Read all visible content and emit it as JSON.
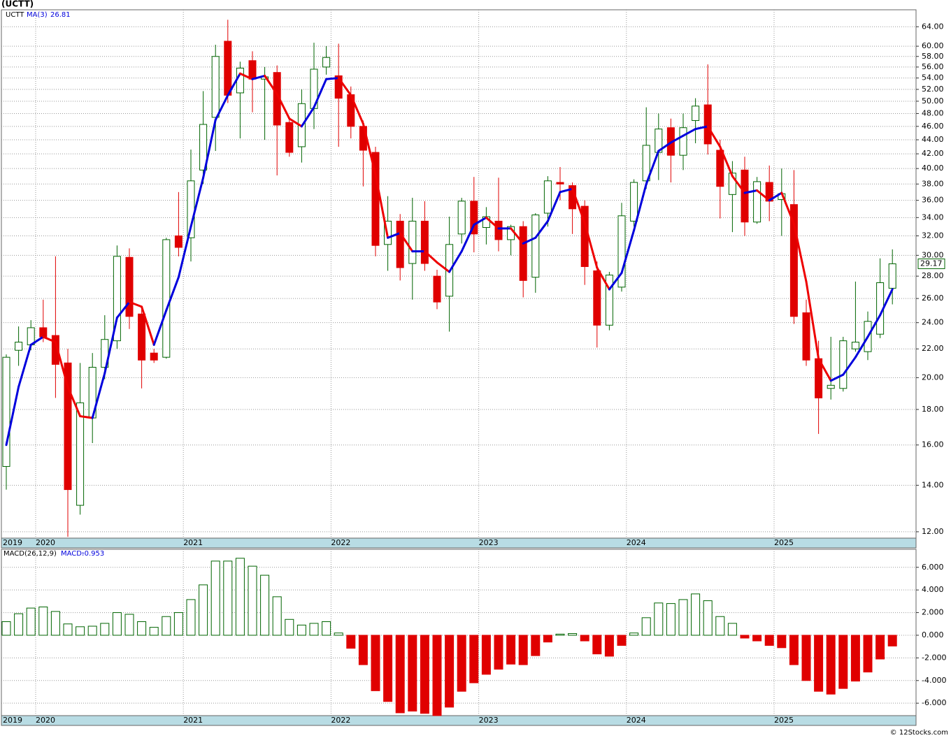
{
  "chart_data": [
    {
      "type": "candlestick",
      "title": "(UCTT)",
      "ticker": "UCTT",
      "log": true,
      "grid": true,
      "up_color": "#006400",
      "down_color": "#e00000",
      "categories": [
        "2019",
        null,
        null,
        "2020",
        null,
        null,
        null,
        null,
        null,
        null,
        null,
        null,
        null,
        null,
        null,
        "2021",
        null,
        null,
        null,
        null,
        null,
        null,
        null,
        null,
        null,
        null,
        null,
        "2022",
        null,
        null,
        null,
        null,
        null,
        null,
        null,
        null,
        null,
        null,
        null,
        "2023",
        null,
        null,
        null,
        null,
        null,
        null,
        null,
        null,
        null,
        null,
        null,
        "2024",
        null,
        null,
        null,
        null,
        null,
        null,
        null,
        null,
        null,
        null,
        null,
        "2025",
        null,
        null,
        null,
        null,
        null,
        null,
        null,
        null,
        null
      ],
      "open": [
        14.9,
        21.9,
        22.3,
        23.6,
        23.0,
        21.0,
        13.1,
        17.5,
        20.7,
        22.6,
        29.8,
        24.7,
        21.7,
        21.4,
        32.0,
        31.8,
        39.8,
        47.4,
        61.0,
        51.4,
        57.2,
        53.8,
        55.0,
        46.6,
        43.0,
        48.8,
        56.0,
        54.4,
        51.1,
        46.0,
        42.2,
        31.1,
        33.6,
        29.2,
        33.6,
        28.0,
        26.2,
        32.2,
        35.9,
        32.9,
        33.6,
        31.6,
        33.0,
        27.9,
        34.5,
        38.2,
        37.8,
        35.3,
        28.5,
        23.8,
        27.0,
        33.6,
        38.4,
        42.2,
        45.8,
        41.8,
        46.9,
        49.4,
        42.5,
        36.7,
        39.8,
        33.5,
        38.2,
        36.1,
        35.5,
        24.8,
        21.3,
        19.3,
        19.3,
        22.0,
        21.8,
        23.1,
        26.9
      ],
      "high": [
        21.6,
        23.7,
        24.2,
        25.9,
        29.9,
        22.0,
        21.0,
        21.7,
        24.6,
        31.0,
        30.7,
        25.3,
        22.0,
        31.8,
        37.0,
        42.6,
        51.7,
        60.3,
        65.5,
        57.0,
        59.0,
        56.0,
        56.3,
        47.5,
        52.0,
        60.7,
        60.0,
        60.5,
        52.5,
        46.9,
        43.0,
        36.5,
        34.4,
        36.3,
        35.9,
        28.6,
        34.1,
        36.3,
        38.9,
        35.2,
        38.8,
        33.2,
        33.6,
        34.5,
        39.0,
        40.2,
        38.2,
        36.0,
        29.4,
        28.4,
        35.7,
        38.6,
        49.0,
        48.0,
        47.2,
        48.0,
        50.5,
        56.5,
        44.0,
        41.0,
        41.6,
        38.9,
        40.4,
        40.0,
        39.8,
        25.9,
        22.6,
        22.9,
        22.9,
        27.5,
        24.9,
        29.7,
        30.6
      ],
      "low": [
        13.8,
        20.8,
        21.9,
        22.5,
        18.7,
        11.8,
        12.7,
        16.1,
        19.9,
        22.0,
        23.5,
        19.3,
        21.0,
        21.3,
        29.9,
        29.4,
        38.0,
        42.4,
        49.7,
        44.2,
        48.2,
        44.0,
        39.1,
        41.6,
        40.8,
        45.6,
        54.6,
        43.0,
        44.2,
        37.7,
        29.9,
        28.5,
        27.6,
        25.9,
        28.5,
        25.1,
        23.3,
        31.2,
        30.3,
        31.1,
        30.4,
        30.0,
        26.1,
        26.5,
        33.0,
        36.0,
        32.2,
        27.2,
        22.1,
        23.4,
        26.6,
        33.0,
        37.4,
        38.5,
        38.2,
        39.8,
        43.5,
        41.9,
        33.9,
        32.4,
        32.0,
        33.3,
        33.6,
        32.0,
        23.9,
        20.8,
        16.6,
        18.6,
        19.1,
        21.8,
        21.2,
        22.8,
        25.5
      ],
      "close": [
        21.4,
        22.5,
        23.6,
        22.9,
        20.9,
        13.8,
        18.4,
        20.7,
        22.7,
        29.9,
        24.5,
        21.2,
        21.2,
        31.6,
        30.8,
        38.4,
        46.3,
        58.0,
        51.0,
        55.8,
        53.8,
        54.2,
        46.2,
        42.2,
        49.6,
        55.6,
        57.8,
        50.5,
        46.0,
        42.5,
        31.0,
        33.6,
        28.8,
        33.6,
        29.2,
        25.7,
        31.1,
        35.9,
        32.2,
        34.1,
        31.6,
        33.0,
        27.6,
        34.3,
        38.4,
        38.0,
        35.0,
        28.9,
        23.8,
        28.1,
        34.2,
        38.2,
        43.2,
        45.6,
        41.8,
        45.8,
        49.2,
        43.4,
        37.7,
        39.4,
        33.5,
        38.3,
        35.9,
        36.8,
        24.5,
        21.2,
        18.7,
        19.5,
        22.6,
        22.5,
        24.1,
        27.4,
        29.17
      ],
      "ma": {
        "name": "MA(3)",
        "up_color": "#0000dd",
        "down_color": "#ee0000",
        "values": [
          16.0,
          19.4,
          22.3,
          22.9,
          22.5,
          19.4,
          17.6,
          17.5,
          20.3,
          24.4,
          25.7,
          25.3,
          22.3,
          25.0,
          27.9,
          33.0,
          38.8,
          47.0,
          51.0,
          54.8,
          53.8,
          54.4,
          51.2,
          47.2,
          46.0,
          49.0,
          53.8,
          54.0,
          51.0,
          46.4,
          39.2,
          31.8,
          32.3,
          30.4,
          30.4,
          29.3,
          28.4,
          30.4,
          33.2,
          34.0,
          32.8,
          32.8,
          31.2,
          31.8,
          33.6,
          37.0,
          37.4,
          33.4,
          28.8,
          26.8,
          28.3,
          32.6,
          38.0,
          42.4,
          43.6,
          44.6,
          45.6,
          46.0,
          43.0,
          39.0,
          36.9,
          37.2,
          36.0,
          36.9,
          33.3,
          27.5,
          21.3,
          19.8,
          20.2,
          21.4,
          22.9,
          24.6,
          26.81
        ]
      },
      "ylim": [
        11.75,
        67.7
      ],
      "yticks": [
        {
          "value": 12,
          "label": "12.00"
        },
        {
          "value": 14,
          "label": "14.00"
        },
        {
          "value": 16,
          "label": "16.00"
        },
        {
          "value": 18,
          "label": "18.00"
        },
        {
          "value": 20,
          "label": "20.00"
        },
        {
          "value": 22,
          "label": "22.00"
        },
        {
          "value": 24,
          "label": "24.00"
        },
        {
          "value": 26,
          "label": "26.00"
        },
        {
          "value": 28,
          "label": "28.00"
        },
        {
          "value": 30,
          "label": "30.00"
        },
        {
          "value": 32,
          "label": "32.00"
        },
        {
          "value": 34,
          "label": "34.00"
        },
        {
          "value": 36,
          "label": "36.00"
        },
        {
          "value": 38,
          "label": "38.00"
        },
        {
          "value": 40,
          "label": "40.00"
        },
        {
          "value": 42,
          "label": "42.00"
        },
        {
          "value": 44,
          "label": "44.00"
        },
        {
          "value": 46,
          "label": "46.00"
        },
        {
          "value": 48,
          "label": "48.00"
        },
        {
          "value": 50,
          "label": "50.00"
        },
        {
          "value": 52,
          "label": "52.00"
        },
        {
          "value": 54,
          "label": "54.00"
        },
        {
          "value": 56,
          "label": "56.00"
        },
        {
          "value": 58,
          "label": "58.00"
        },
        {
          "value": 60,
          "label": "60.00"
        },
        {
          "value": 64,
          "label": "64.00"
        }
      ]
    },
    {
      "type": "bar",
      "title": "MACD(26,12,9)",
      "value_name": "MACD:",
      "grid": true,
      "up_color": "#006400",
      "down_color": "#e00000",
      "categories": [
        "2019",
        null,
        null,
        "2020",
        null,
        null,
        null,
        null,
        null,
        null,
        null,
        null,
        null,
        null,
        null,
        "2021",
        null,
        null,
        null,
        null,
        null,
        null,
        null,
        null,
        null,
        null,
        null,
        "2022",
        null,
        null,
        null,
        null,
        null,
        null,
        null,
        null,
        null,
        null,
        null,
        "2023",
        null,
        null,
        null,
        null,
        null,
        null,
        null,
        null,
        null,
        null,
        null,
        "2024",
        null,
        null,
        null,
        null,
        null,
        null,
        null,
        null,
        null,
        null,
        null,
        "2025",
        null,
        null,
        null,
        null,
        null,
        null,
        null,
        null,
        null
      ],
      "values": [
        1.2,
        1.9,
        2.4,
        2.5,
        2.1,
        1.0,
        0.75,
        0.8,
        1.05,
        2.0,
        1.85,
        1.2,
        0.7,
        1.65,
        2.0,
        3.15,
        4.45,
        6.55,
        6.55,
        6.8,
        6.1,
        5.3,
        3.4,
        1.4,
        0.9,
        1.05,
        1.2,
        0.2,
        -1.15,
        -2.6,
        -4.9,
        -5.85,
        -6.85,
        -6.7,
        -6.9,
        -7.1,
        -6.35,
        -4.95,
        -4.2,
        -3.45,
        -3.0,
        -2.55,
        -2.6,
        -1.8,
        -0.6,
        0.1,
        0.15,
        -0.5,
        -1.65,
        -1.85,
        -0.9,
        0.2,
        1.55,
        2.85,
        2.8,
        3.15,
        3.65,
        3.05,
        1.65,
        1.05,
        -0.25,
        -0.5,
        -0.9,
        -1.1,
        -2.6,
        -4.0,
        -4.95,
        -5.2,
        -4.7,
        -4.05,
        -3.25,
        -2.1,
        -0.953
      ],
      "ylim": [
        -7.1,
        7.59
      ],
      "yticks": [
        {
          "value": -6,
          "label": "-6.000"
        },
        {
          "value": -4,
          "label": "-4.000"
        },
        {
          "value": -2,
          "label": "-2.000"
        },
        {
          "value": 0,
          "label": "0.000"
        },
        {
          "value": 2,
          "label": "2.000"
        },
        {
          "value": 4,
          "label": "4.000"
        },
        {
          "value": 6,
          "label": "6.000"
        }
      ]
    }
  ],
  "footer": "© 12Stocks.com"
}
